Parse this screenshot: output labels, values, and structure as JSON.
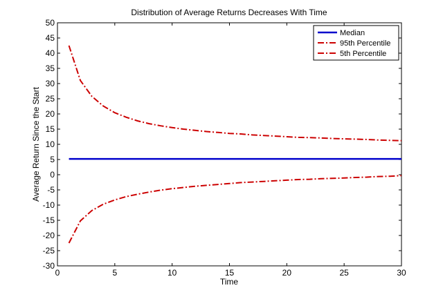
{
  "chart_data": {
    "type": "line",
    "title": "Distribution of Average Returns Decreases With Time",
    "xlabel": "Time",
    "ylabel": "Average Return Since the Start",
    "xlim": [
      0,
      30
    ],
    "ylim": [
      -30,
      50
    ],
    "x_ticks": [
      0,
      5,
      10,
      15,
      20,
      25,
      30
    ],
    "y_ticks": [
      -30,
      -25,
      -20,
      -15,
      -10,
      -5,
      0,
      5,
      10,
      15,
      20,
      25,
      30,
      35,
      40,
      45,
      50
    ],
    "grid": false,
    "legend_position": "top-right",
    "x": [
      1,
      2,
      3,
      4,
      5,
      6,
      7,
      8,
      9,
      10,
      11,
      12,
      13,
      14,
      15,
      16,
      17,
      18,
      19,
      20,
      21,
      22,
      23,
      24,
      25,
      26,
      27,
      28,
      29,
      30
    ],
    "series": [
      {
        "name": "Median",
        "color": "#0000cc",
        "style": "solid",
        "values": [
          5.2,
          5.2,
          5.2,
          5.2,
          5.2,
          5.2,
          5.2,
          5.2,
          5.2,
          5.2,
          5.2,
          5.2,
          5.2,
          5.2,
          5.2,
          5.2,
          5.2,
          5.2,
          5.2,
          5.2,
          5.2,
          5.2,
          5.2,
          5.2,
          5.2,
          5.2,
          5.2,
          5.2,
          5.2,
          5.2
        ]
      },
      {
        "name": "95th Percentile",
        "color": "#cc0000",
        "style": "dashdot",
        "values": [
          42.5,
          31.0,
          25.8,
          22.6,
          20.4,
          18.9,
          17.7,
          16.8,
          16.1,
          15.5,
          15.0,
          14.6,
          14.2,
          13.9,
          13.6,
          13.4,
          13.1,
          12.9,
          12.7,
          12.5,
          12.3,
          12.2,
          12.1,
          11.9,
          11.8,
          11.7,
          11.6,
          11.4,
          11.3,
          11.2
        ]
      },
      {
        "name": "5th Percentile",
        "color": "#cc0000",
        "style": "dashdot",
        "values": [
          -22.5,
          -15.2,
          -11.8,
          -9.7,
          -8.3,
          -7.2,
          -6.4,
          -5.7,
          -5.1,
          -4.6,
          -4.2,
          -3.8,
          -3.5,
          -3.2,
          -2.9,
          -2.6,
          -2.4,
          -2.2,
          -2.0,
          -1.8,
          -1.6,
          -1.5,
          -1.3,
          -1.2,
          -1.1,
          -0.9,
          -0.8,
          -0.6,
          -0.5,
          -0.3
        ]
      }
    ]
  }
}
